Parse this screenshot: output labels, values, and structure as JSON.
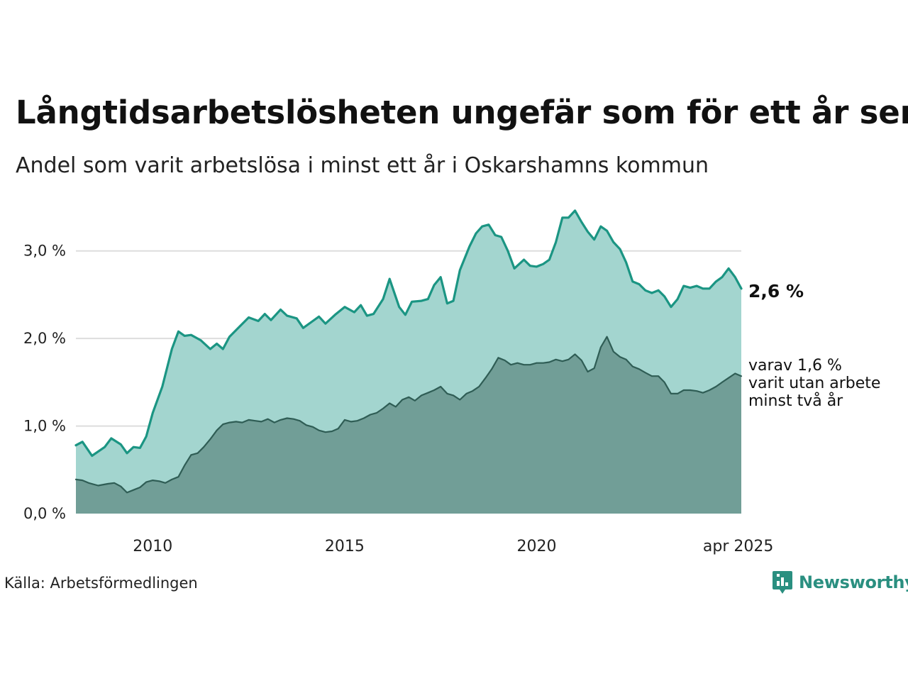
{
  "header": {
    "title": "Långtidsarbetslösheten ungefär som för ett år sen",
    "subtitle": "Andel som varit arbetslösa i minst ett år i Oskarshamns kommun"
  },
  "footer": {
    "source": "Källa: Arbetsförmedlingen",
    "brand": "Newsworthy",
    "brand_icon": "newsworthy-logo-icon"
  },
  "colors": {
    "long_line": "#1b9583",
    "long_fill": "#a3d5cf",
    "two_year_line": "#2f5d55",
    "two_year_fill": "#719e97",
    "grid": "#dddddd"
  },
  "chart_data": {
    "type": "area",
    "x_unit": "year",
    "xlim": [
      2008.0,
      2025.33
    ],
    "ylim": [
      0,
      3.5
    ],
    "y_ticks": [
      {
        "value": 0,
        "label": "0,0 %"
      },
      {
        "value": 1,
        "label": "1,0 %"
      },
      {
        "value": 2,
        "label": "2,0 %"
      },
      {
        "value": 3,
        "label": "3,0 %"
      }
    ],
    "x_ticks": [
      {
        "value": 2010,
        "label": "2010"
      },
      {
        "value": 2015,
        "label": "2015"
      },
      {
        "value": 2020,
        "label": "2020"
      },
      {
        "value": 2025.25,
        "label": "apr 2025"
      }
    ],
    "grid": true,
    "series": [
      {
        "key": "long",
        "end_label": "2,6 %",
        "points": [
          [
            2008.0,
            0.78
          ],
          [
            2008.17,
            0.82
          ],
          [
            2008.42,
            0.66
          ],
          [
            2008.75,
            0.76
          ],
          [
            2008.92,
            0.86
          ],
          [
            2009.17,
            0.79
          ],
          [
            2009.33,
            0.69
          ],
          [
            2009.5,
            0.76
          ],
          [
            2009.67,
            0.75
          ],
          [
            2009.83,
            0.88
          ],
          [
            2010.0,
            1.15
          ],
          [
            2010.25,
            1.45
          ],
          [
            2010.5,
            1.88
          ],
          [
            2010.67,
            2.08
          ],
          [
            2010.83,
            2.03
          ],
          [
            2011.0,
            2.04
          ],
          [
            2011.25,
            1.98
          ],
          [
            2011.5,
            1.88
          ],
          [
            2011.67,
            1.94
          ],
          [
            2011.83,
            1.88
          ],
          [
            2012.0,
            2.02
          ],
          [
            2012.25,
            2.13
          ],
          [
            2012.5,
            2.24
          ],
          [
            2012.75,
            2.2
          ],
          [
            2012.92,
            2.28
          ],
          [
            2013.08,
            2.21
          ],
          [
            2013.33,
            2.33
          ],
          [
            2013.5,
            2.26
          ],
          [
            2013.75,
            2.23
          ],
          [
            2013.92,
            2.12
          ],
          [
            2014.17,
            2.2
          ],
          [
            2014.33,
            2.25
          ],
          [
            2014.5,
            2.17
          ],
          [
            2014.75,
            2.27
          ],
          [
            2015.0,
            2.36
          ],
          [
            2015.25,
            2.3
          ],
          [
            2015.42,
            2.38
          ],
          [
            2015.58,
            2.26
          ],
          [
            2015.75,
            2.28
          ],
          [
            2016.0,
            2.45
          ],
          [
            2016.17,
            2.68
          ],
          [
            2016.42,
            2.36
          ],
          [
            2016.58,
            2.27
          ],
          [
            2016.75,
            2.42
          ],
          [
            2017.0,
            2.43
          ],
          [
            2017.17,
            2.45
          ],
          [
            2017.33,
            2.61
          ],
          [
            2017.5,
            2.7
          ],
          [
            2017.67,
            2.4
          ],
          [
            2017.83,
            2.43
          ],
          [
            2018.0,
            2.78
          ],
          [
            2018.25,
            3.05
          ],
          [
            2018.42,
            3.2
          ],
          [
            2018.58,
            3.28
          ],
          [
            2018.75,
            3.3
          ],
          [
            2018.92,
            3.18
          ],
          [
            2019.08,
            3.16
          ],
          [
            2019.25,
            3.0
          ],
          [
            2019.42,
            2.8
          ],
          [
            2019.67,
            2.9
          ],
          [
            2019.83,
            2.83
          ],
          [
            2020.0,
            2.82
          ],
          [
            2020.17,
            2.85
          ],
          [
            2020.33,
            2.9
          ],
          [
            2020.5,
            3.1
          ],
          [
            2020.67,
            3.38
          ],
          [
            2020.83,
            3.38
          ],
          [
            2021.0,
            3.46
          ],
          [
            2021.17,
            3.33
          ],
          [
            2021.33,
            3.22
          ],
          [
            2021.5,
            3.13
          ],
          [
            2021.67,
            3.28
          ],
          [
            2021.83,
            3.23
          ],
          [
            2022.0,
            3.1
          ],
          [
            2022.17,
            3.02
          ],
          [
            2022.33,
            2.87
          ],
          [
            2022.5,
            2.65
          ],
          [
            2022.67,
            2.62
          ],
          [
            2022.83,
            2.55
          ],
          [
            2023.0,
            2.52
          ],
          [
            2023.17,
            2.55
          ],
          [
            2023.33,
            2.48
          ],
          [
            2023.5,
            2.36
          ],
          [
            2023.67,
            2.45
          ],
          [
            2023.83,
            2.6
          ],
          [
            2024.0,
            2.58
          ],
          [
            2024.17,
            2.6
          ],
          [
            2024.33,
            2.57
          ],
          [
            2024.5,
            2.57
          ],
          [
            2024.67,
            2.65
          ],
          [
            2024.83,
            2.7
          ],
          [
            2025.0,
            2.8
          ],
          [
            2025.17,
            2.7
          ],
          [
            2025.33,
            2.57
          ]
        ]
      },
      {
        "key": "two_year",
        "end_label": [
          "varav 1,6 %",
          "varit utan arbete",
          "minst två år"
        ],
        "points": [
          [
            2008.0,
            0.39
          ],
          [
            2008.17,
            0.38
          ],
          [
            2008.33,
            0.35
          ],
          [
            2008.58,
            0.32
          ],
          [
            2008.83,
            0.34
          ],
          [
            2009.0,
            0.35
          ],
          [
            2009.17,
            0.31
          ],
          [
            2009.33,
            0.24
          ],
          [
            2009.5,
            0.27
          ],
          [
            2009.67,
            0.3
          ],
          [
            2009.83,
            0.36
          ],
          [
            2010.0,
            0.38
          ],
          [
            2010.17,
            0.37
          ],
          [
            2010.33,
            0.35
          ],
          [
            2010.5,
            0.39
          ],
          [
            2010.67,
            0.42
          ],
          [
            2010.83,
            0.55
          ],
          [
            2011.0,
            0.67
          ],
          [
            2011.17,
            0.69
          ],
          [
            2011.33,
            0.76
          ],
          [
            2011.5,
            0.85
          ],
          [
            2011.67,
            0.95
          ],
          [
            2011.83,
            1.02
          ],
          [
            2012.0,
            1.04
          ],
          [
            2012.17,
            1.05
          ],
          [
            2012.33,
            1.04
          ],
          [
            2012.5,
            1.07
          ],
          [
            2012.67,
            1.06
          ],
          [
            2012.83,
            1.05
          ],
          [
            2013.0,
            1.08
          ],
          [
            2013.17,
            1.04
          ],
          [
            2013.33,
            1.07
          ],
          [
            2013.5,
            1.09
          ],
          [
            2013.67,
            1.08
          ],
          [
            2013.83,
            1.06
          ],
          [
            2014.0,
            1.01
          ],
          [
            2014.17,
            0.99
          ],
          [
            2014.33,
            0.95
          ],
          [
            2014.5,
            0.93
          ],
          [
            2014.67,
            0.94
          ],
          [
            2014.83,
            0.97
          ],
          [
            2015.0,
            1.07
          ],
          [
            2015.17,
            1.05
          ],
          [
            2015.33,
            1.06
          ],
          [
            2015.5,
            1.09
          ],
          [
            2015.67,
            1.13
          ],
          [
            2015.83,
            1.15
          ],
          [
            2016.0,
            1.2
          ],
          [
            2016.17,
            1.26
          ],
          [
            2016.33,
            1.22
          ],
          [
            2016.5,
            1.3
          ],
          [
            2016.67,
            1.33
          ],
          [
            2016.83,
            1.29
          ],
          [
            2017.0,
            1.35
          ],
          [
            2017.17,
            1.38
          ],
          [
            2017.33,
            1.41
          ],
          [
            2017.5,
            1.45
          ],
          [
            2017.67,
            1.37
          ],
          [
            2017.83,
            1.35
          ],
          [
            2018.0,
            1.3
          ],
          [
            2018.17,
            1.37
          ],
          [
            2018.33,
            1.4
          ],
          [
            2018.5,
            1.45
          ],
          [
            2018.67,
            1.55
          ],
          [
            2018.83,
            1.65
          ],
          [
            2019.0,
            1.78
          ],
          [
            2019.17,
            1.75
          ],
          [
            2019.33,
            1.7
          ],
          [
            2019.5,
            1.72
          ],
          [
            2019.67,
            1.7
          ],
          [
            2019.83,
            1.7
          ],
          [
            2020.0,
            1.72
          ],
          [
            2020.17,
            1.72
          ],
          [
            2020.33,
            1.73
          ],
          [
            2020.5,
            1.76
          ],
          [
            2020.67,
            1.74
          ],
          [
            2020.83,
            1.76
          ],
          [
            2021.0,
            1.82
          ],
          [
            2021.17,
            1.75
          ],
          [
            2021.33,
            1.62
          ],
          [
            2021.5,
            1.66
          ],
          [
            2021.67,
            1.9
          ],
          [
            2021.83,
            2.02
          ],
          [
            2022.0,
            1.85
          ],
          [
            2022.17,
            1.79
          ],
          [
            2022.33,
            1.76
          ],
          [
            2022.5,
            1.68
          ],
          [
            2022.67,
            1.65
          ],
          [
            2022.83,
            1.61
          ],
          [
            2023.0,
            1.57
          ],
          [
            2023.17,
            1.57
          ],
          [
            2023.33,
            1.5
          ],
          [
            2023.5,
            1.37
          ],
          [
            2023.67,
            1.37
          ],
          [
            2023.83,
            1.41
          ],
          [
            2024.0,
            1.41
          ],
          [
            2024.17,
            1.4
          ],
          [
            2024.33,
            1.38
          ],
          [
            2024.5,
            1.41
          ],
          [
            2024.67,
            1.45
          ],
          [
            2024.83,
            1.5
          ],
          [
            2025.0,
            1.55
          ],
          [
            2025.17,
            1.6
          ],
          [
            2025.33,
            1.57
          ]
        ]
      }
    ]
  }
}
